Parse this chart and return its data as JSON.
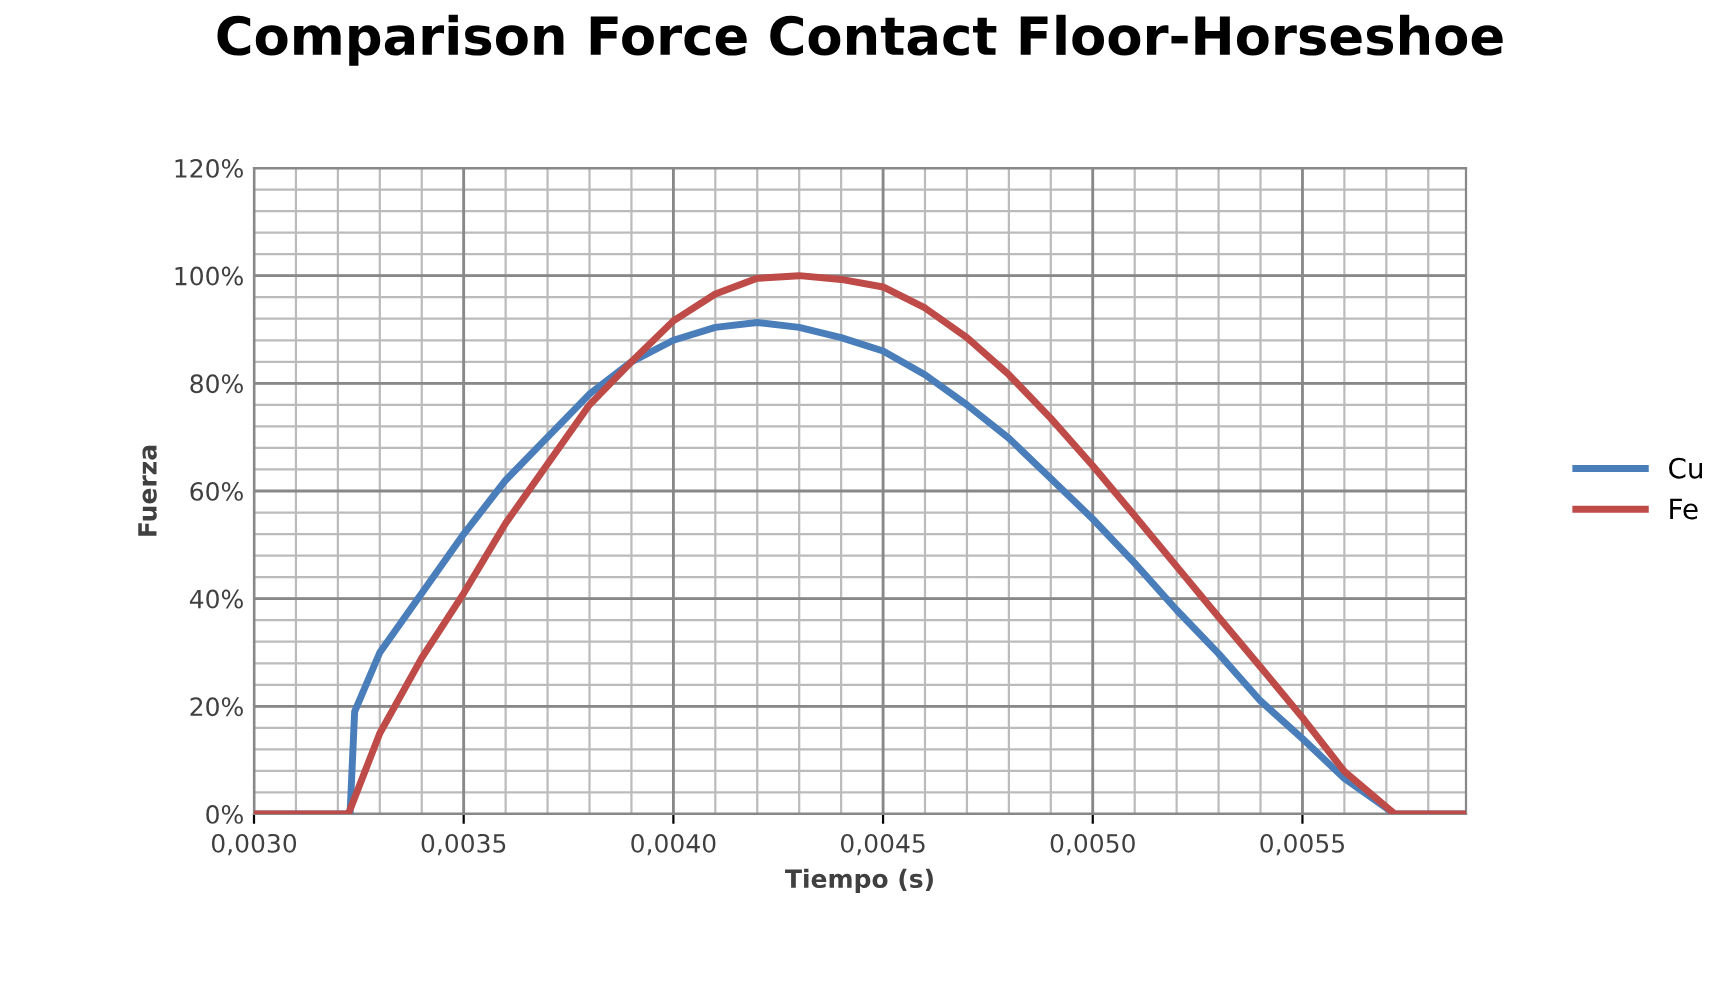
{
  "chart_data": {
    "type": "line",
    "title": "Comparison Force Contact Floor-Horseshoe",
    "xlabel": "Tiempo (s)",
    "ylabel": "Fuerza",
    "xlim": [
      0.003,
      0.00589
    ],
    "ylim": [
      0,
      120
    ],
    "xticks": [
      {
        "value": 0.003,
        "label": "0,0030"
      },
      {
        "value": 0.0035,
        "label": "0,0035"
      },
      {
        "value": 0.004,
        "label": "0,0040"
      },
      {
        "value": 0.0045,
        "label": "0,0045"
      },
      {
        "value": 0.005,
        "label": "0,0050"
      },
      {
        "value": 0.0055,
        "label": "0,0055"
      }
    ],
    "yticks": [
      {
        "value": 0,
        "label": "0%"
      },
      {
        "value": 20,
        "label": "20%"
      },
      {
        "value": 40,
        "label": "40%"
      },
      {
        "value": 60,
        "label": "60%"
      },
      {
        "value": 80,
        "label": "80%"
      },
      {
        "value": 100,
        "label": "100%"
      },
      {
        "value": 120,
        "label": "120%"
      }
    ],
    "grid": true,
    "legend": "right",
    "marker": "none",
    "line_style": "solid",
    "series": [
      {
        "name": "Cu",
        "color": "#4a7ebb",
        "x": [
          0.003,
          0.003229,
          0.00324,
          0.0033,
          0.0034,
          0.0035,
          0.0036,
          0.0037,
          0.0038,
          0.0039,
          0.004,
          0.0041,
          0.0042,
          0.0043,
          0.0044,
          0.0045,
          0.0046,
          0.0047,
          0.0048,
          0.0049,
          0.005,
          0.0051,
          0.0052,
          0.0053,
          0.0054,
          0.0055,
          0.0056,
          0.00572,
          0.00589
        ],
        "values": [
          0,
          0,
          19,
          30,
          41,
          52,
          62,
          70,
          78,
          84,
          88,
          90.4,
          91.3,
          90.4,
          88.5,
          86,
          81.6,
          76,
          69.8,
          62.3,
          54.8,
          46.6,
          37.9,
          29.8,
          21,
          14,
          6.6,
          0,
          0
        ]
      },
      {
        "name": "Fe",
        "color": "#be4b48",
        "x": [
          0.003,
          0.003225,
          0.0033,
          0.0034,
          0.0035,
          0.0036,
          0.0037,
          0.0038,
          0.0039,
          0.004,
          0.0041,
          0.0042,
          0.0043,
          0.0044,
          0.0045,
          0.0046,
          0.0047,
          0.0048,
          0.0049,
          0.005,
          0.0051,
          0.0052,
          0.0053,
          0.0054,
          0.0055,
          0.0056,
          0.00572,
          0.00589
        ],
        "values": [
          0,
          0,
          15,
          29,
          41,
          54,
          65,
          76,
          84,
          91.6,
          96.6,
          99.5,
          100,
          99.3,
          97.9,
          94,
          88.5,
          81.6,
          73.5,
          64.7,
          55.4,
          46,
          36.6,
          27.3,
          17.9,
          7.9,
          0,
          0
        ]
      }
    ]
  }
}
